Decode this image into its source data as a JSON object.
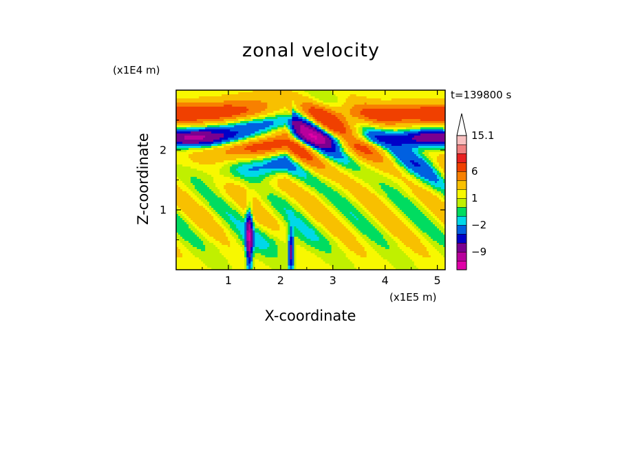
{
  "chart_data": {
    "type": "heatmap",
    "title": "zonal velocity",
    "xlabel": "X-coordinate",
    "ylabel": "Z-coordinate",
    "x_unit": "(x1E5 m)",
    "y_unit": "(x1E4 m)",
    "time_label": "t=139800 s",
    "xlim": [
      0,
      5.15
    ],
    "ylim": [
      0,
      3.0
    ],
    "x_ticks": [
      1,
      2,
      3,
      4,
      5
    ],
    "y_ticks": [
      1,
      2
    ],
    "x_tick_labels": [
      "1",
      "2",
      "3",
      "4",
      "5"
    ],
    "y_tick_labels": [
      "1",
      "2"
    ],
    "colorbar": {
      "levels": [
        -15.1,
        -12,
        -9,
        -6,
        -4,
        -2,
        -1,
        0,
        1,
        2,
        4,
        6,
        9,
        12,
        15.1
      ],
      "labeled_levels": [
        15.1,
        6,
        1,
        -2,
        -9
      ],
      "labels": [
        "15.1",
        "6",
        "1",
        "−2",
        "−9"
      ],
      "colors": [
        "#e000a8",
        "#b8009c",
        "#7a0090",
        "#0000c8",
        "#0060e0",
        "#00d8e8",
        "#00dc60",
        "#c0f000",
        "#f8f800",
        "#f8c000",
        "#f88000",
        "#f04000",
        "#e82020",
        "#f08080",
        "#f8c0c0"
      ],
      "extend": "max"
    }
  }
}
